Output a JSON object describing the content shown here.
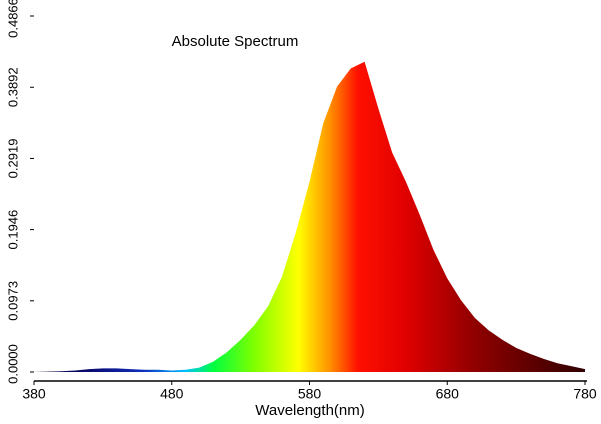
{
  "chart_data": {
    "type": "area",
    "title": "Absolute Spectrum",
    "x_label": "Wavelength(nm)",
    "x": [
      380,
      390,
      400,
      410,
      420,
      430,
      440,
      450,
      460,
      470,
      480,
      490,
      500,
      510,
      520,
      530,
      540,
      550,
      560,
      570,
      580,
      590,
      600,
      610,
      620,
      630,
      640,
      650,
      660,
      670,
      680,
      690,
      700,
      710,
      720,
      730,
      740,
      750,
      760,
      770,
      780
    ],
    "values": [
      0,
      0.0005,
      0.001,
      0.002,
      0.004,
      0.005,
      0.005,
      0.004,
      0.003,
      0.003,
      0.002,
      0.003,
      0.006,
      0.014,
      0.027,
      0.044,
      0.064,
      0.09,
      0.13,
      0.19,
      0.26,
      0.34,
      0.39,
      0.415,
      0.424,
      0.36,
      0.3,
      0.26,
      0.215,
      0.167,
      0.128,
      0.098,
      0.074,
      0.057,
      0.044,
      0.033,
      0.025,
      0.018,
      0.012,
      0.008,
      0.004
    ],
    "xlim": [
      380,
      780
    ],
    "xticks": [
      380,
      480,
      580,
      680,
      780
    ],
    "ylim": [
      0,
      0.4866
    ],
    "yticks": [
      {
        "value": 0,
        "label": "0.0000"
      },
      0.0973,
      0.1946,
      0.2919,
      0.3892,
      0.4866
    ]
  }
}
